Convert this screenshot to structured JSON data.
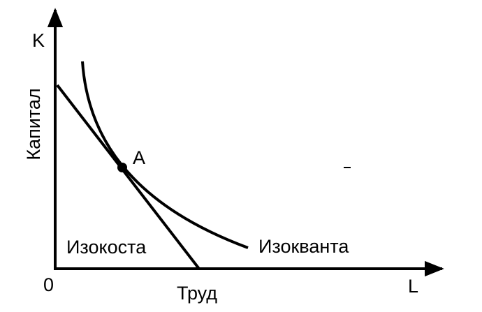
{
  "axes": {
    "y_symbol": "K",
    "y_label": "Капитал",
    "origin": "0",
    "x_label": "Труд",
    "x_symbol": "L"
  },
  "point": {
    "label": "A"
  },
  "curves": {
    "isocost": "Изокоста",
    "isoquant": "Изокванта"
  }
}
